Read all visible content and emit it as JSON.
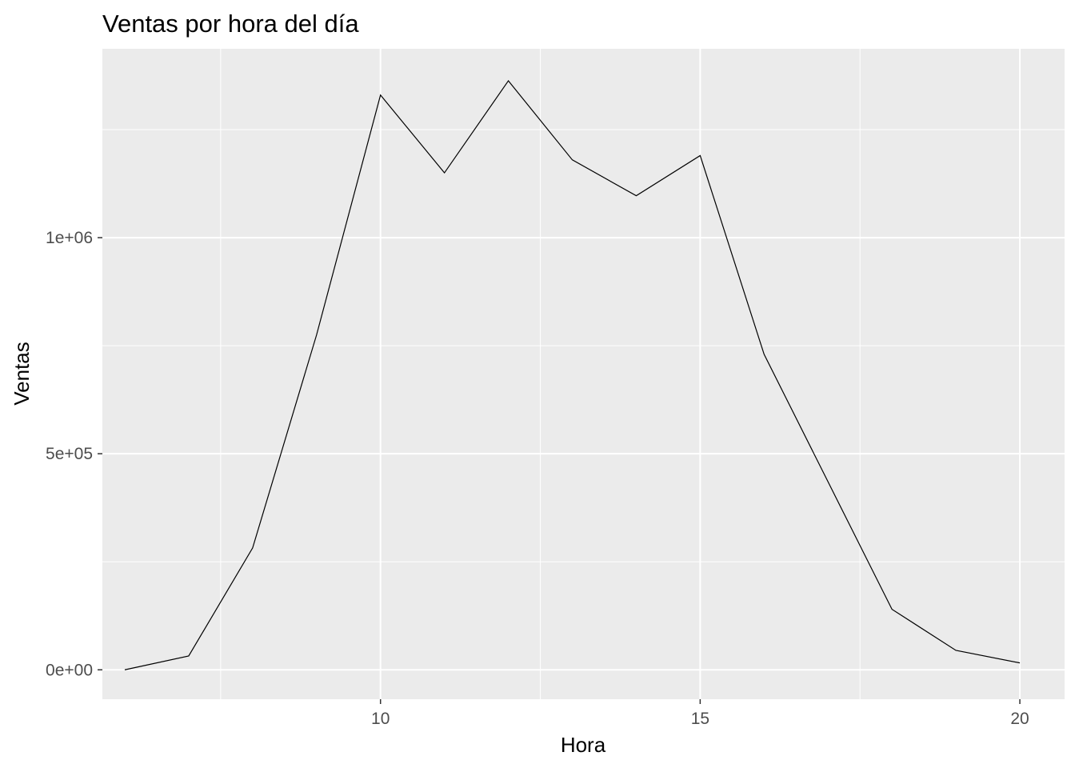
{
  "chart_data": {
    "type": "line",
    "title": "Ventas por hora del día",
    "xlabel": "Hora",
    "ylabel": "Ventas",
    "xlim": [
      5.65,
      20.7
    ],
    "ylim": [
      -68000,
      1437000
    ],
    "x_ticks": [
      10,
      15,
      20
    ],
    "x_tick_labels": [
      "10",
      "15",
      "20"
    ],
    "x_minor_ticks": [
      7.5,
      12.5,
      17.5
    ],
    "y_ticks": [
      0,
      500000,
      1000000
    ],
    "y_tick_labels": [
      "0e+00",
      "5e+05",
      "1e+06"
    ],
    "y_minor_ticks": [
      250000,
      750000,
      1250000
    ],
    "grid": true,
    "legend": "none",
    "panel_color": "#ebebeb",
    "line_color": "#000000",
    "series": [
      {
        "x": [
          6,
          7,
          8,
          9,
          10,
          11,
          12,
          13,
          14,
          15,
          16,
          17,
          18,
          19,
          20
        ],
        "values": [
          0,
          32000,
          282000,
          775000,
          1330000,
          1150000,
          1363000,
          1180000,
          1097000,
          1190000,
          730000,
          435000,
          140000,
          45000,
          16000
        ]
      }
    ]
  }
}
